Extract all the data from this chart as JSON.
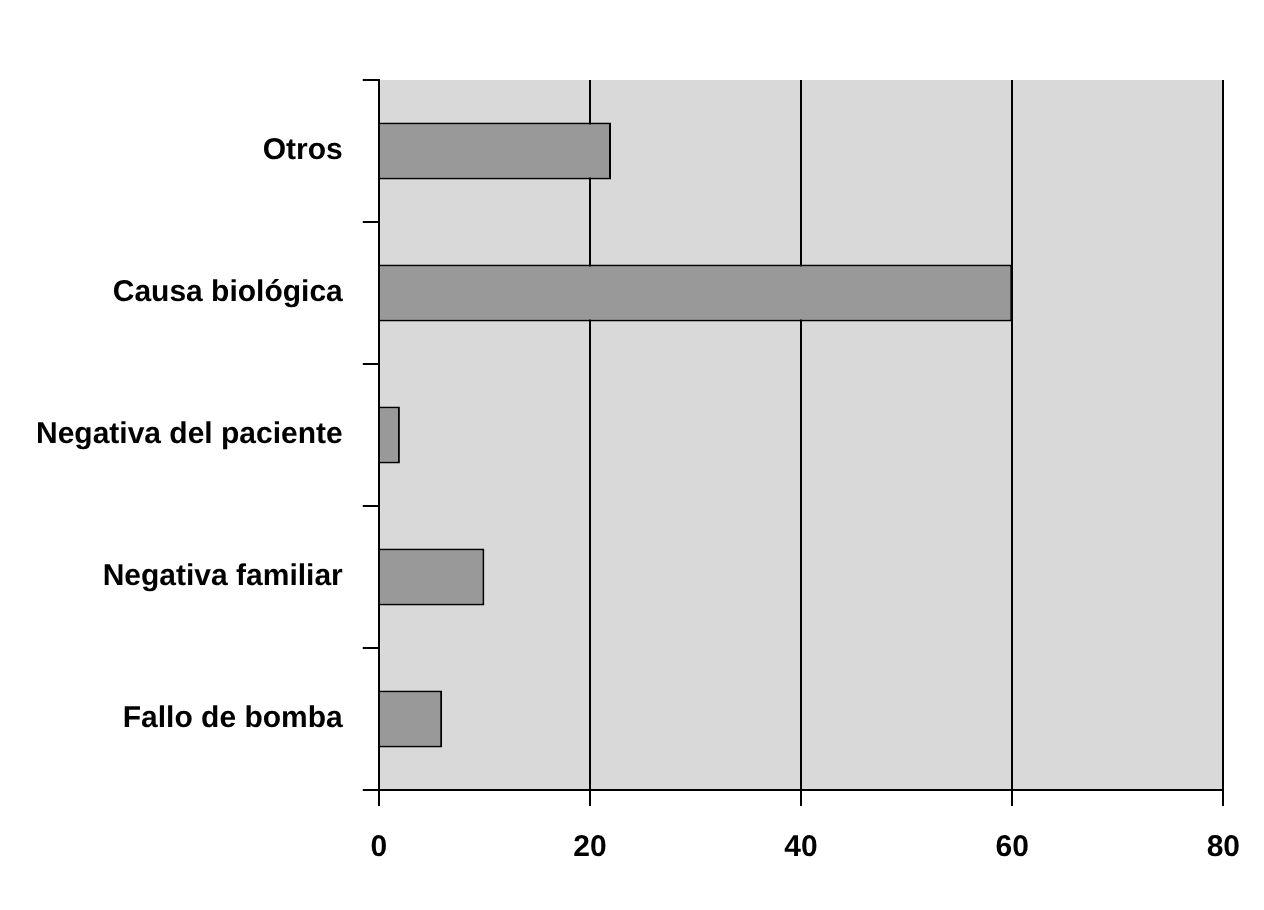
{
  "chart_data": {
    "type": "bar",
    "orientation": "horizontal",
    "categories": [
      "Otros",
      "Causa biológica",
      "Negativa del paciente",
      "Negativa familiar",
      "Fallo de bomba"
    ],
    "values": [
      22,
      60,
      2,
      10,
      6
    ],
    "color": "#999999",
    "xlim": [
      0,
      80
    ],
    "xticks": [
      0,
      20,
      40,
      60,
      80
    ],
    "grid": "x",
    "legend": false
  }
}
